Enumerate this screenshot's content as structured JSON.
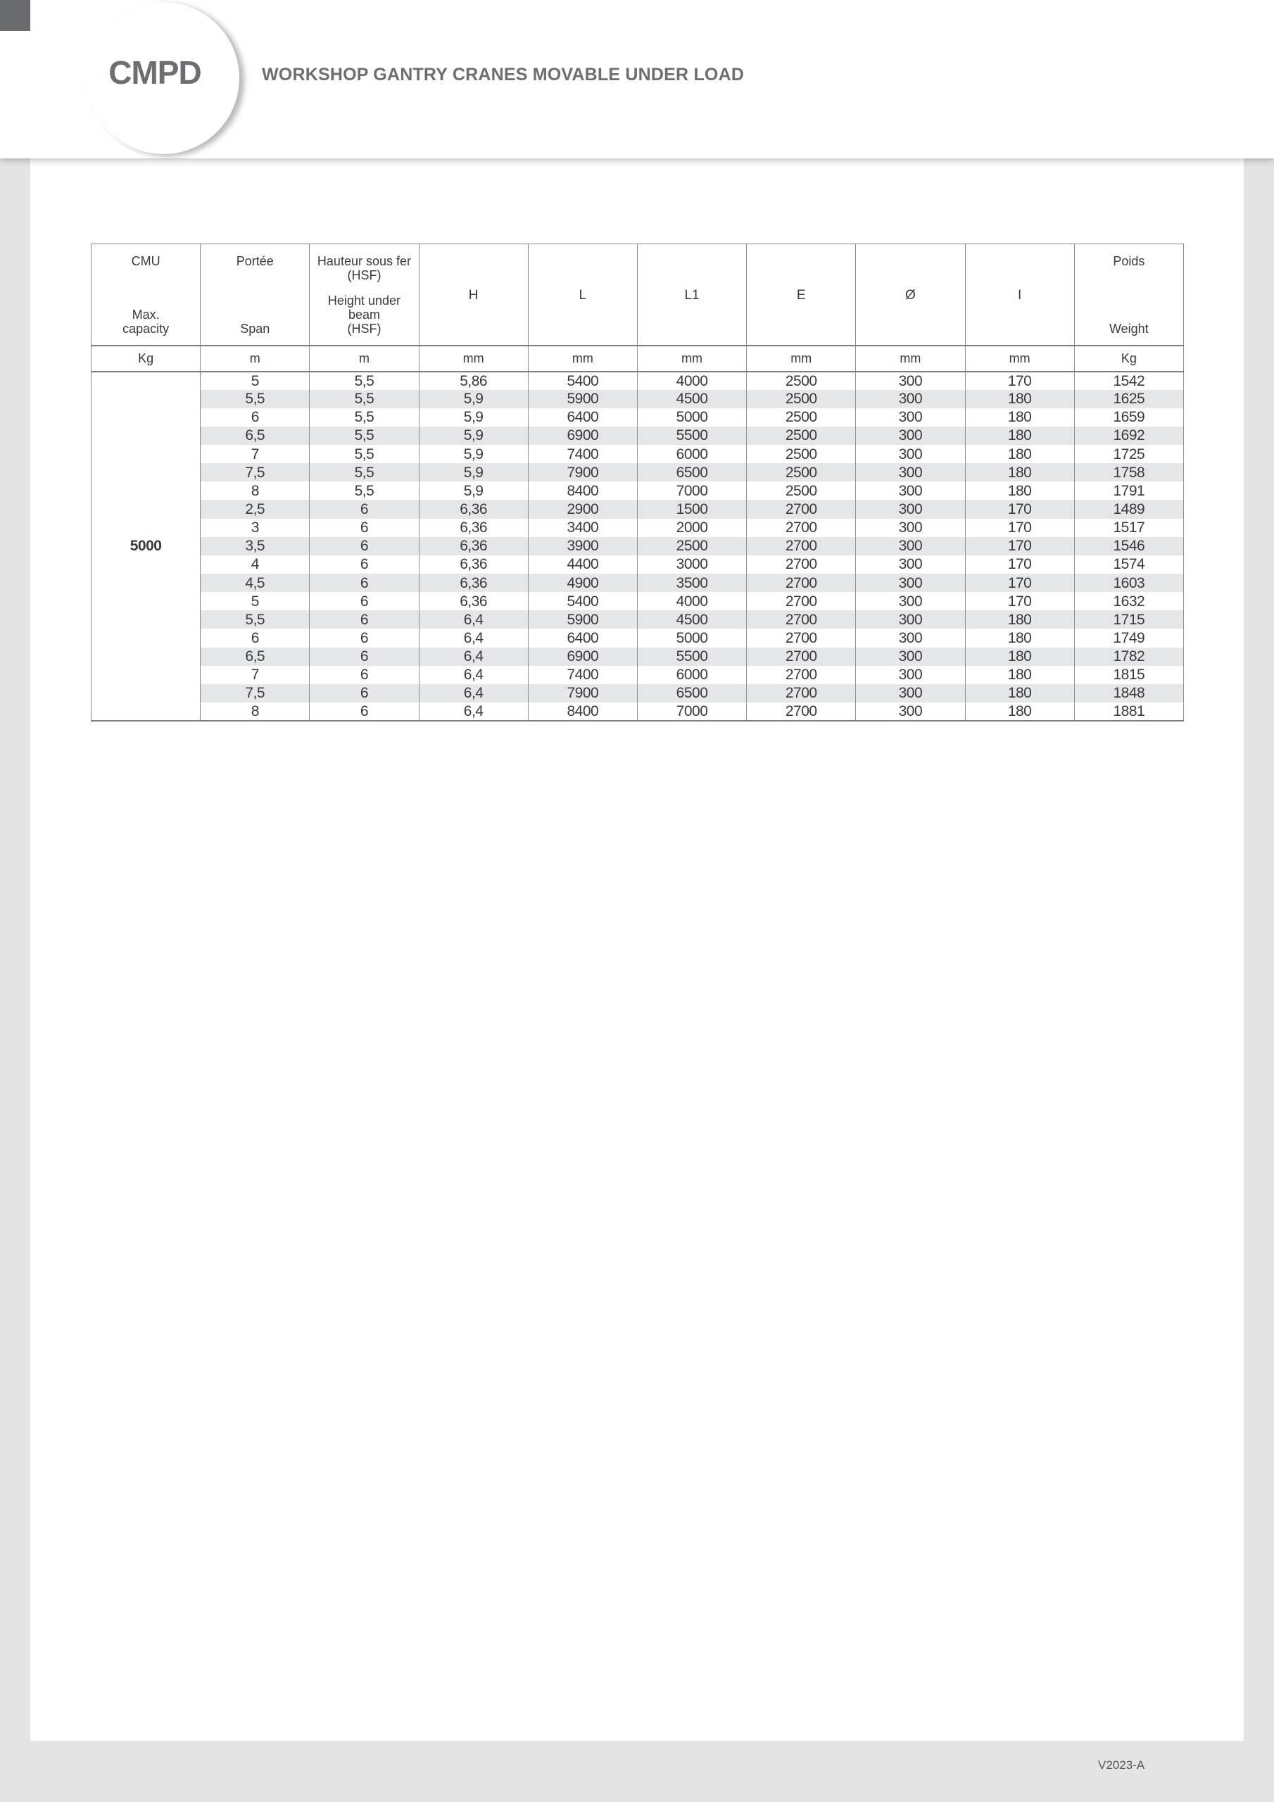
{
  "page": {
    "brand": "CMPD",
    "title": "WORKSHOP GANTRY CRANES MOVABLE UNDER LOAD",
    "version": "V2023-A"
  },
  "colors": {
    "page_background": "#e4e4e5",
    "corner_square": "#6a6b6d",
    "brand_text": "#6d6e71",
    "table_text": "#3a3a3c",
    "row_shading": "#e5e6e7",
    "table_border": "#88898b"
  },
  "table": {
    "columns": [
      {
        "key": "cmu",
        "fr": "CMU",
        "en": "Max.\ncapacity",
        "unit": "Kg"
      },
      {
        "key": "span",
        "fr": "Portée",
        "en": "Span",
        "unit": "m"
      },
      {
        "key": "hsf",
        "fr": "Hauteur sous fer\n(HSF)",
        "en": "Height under beam\n(HSF)",
        "unit": "m"
      },
      {
        "key": "h",
        "letter": "H",
        "unit": "mm"
      },
      {
        "key": "l",
        "letter": "L",
        "unit": "mm"
      },
      {
        "key": "l1",
        "letter": "L1",
        "unit": "mm"
      },
      {
        "key": "e",
        "letter": "E",
        "unit": "mm"
      },
      {
        "key": "diameter",
        "letter": "Ø",
        "unit": "mm"
      },
      {
        "key": "i",
        "letter": "I",
        "unit": "mm"
      },
      {
        "key": "weight",
        "fr": "Poids",
        "en": "Weight",
        "unit": "Kg"
      }
    ],
    "capacity": "5000",
    "rows": [
      [
        "5",
        "5,5",
        "5,86",
        "5400",
        "4000",
        "2500",
        "300",
        "170",
        "1542"
      ],
      [
        "5,5",
        "5,5",
        "5,9",
        "5900",
        "4500",
        "2500",
        "300",
        "180",
        "1625"
      ],
      [
        "6",
        "5,5",
        "5,9",
        "6400",
        "5000",
        "2500",
        "300",
        "180",
        "1659"
      ],
      [
        "6,5",
        "5,5",
        "5,9",
        "6900",
        "5500",
        "2500",
        "300",
        "180",
        "1692"
      ],
      [
        "7",
        "5,5",
        "5,9",
        "7400",
        "6000",
        "2500",
        "300",
        "180",
        "1725"
      ],
      [
        "7,5",
        "5,5",
        "5,9",
        "7900",
        "6500",
        "2500",
        "300",
        "180",
        "1758"
      ],
      [
        "8",
        "5,5",
        "5,9",
        "8400",
        "7000",
        "2500",
        "300",
        "180",
        "1791"
      ],
      [
        "2,5",
        "6",
        "6,36",
        "2900",
        "1500",
        "2700",
        "300",
        "170",
        "1489"
      ],
      [
        "3",
        "6",
        "6,36",
        "3400",
        "2000",
        "2700",
        "300",
        "170",
        "1517"
      ],
      [
        "3,5",
        "6",
        "6,36",
        "3900",
        "2500",
        "2700",
        "300",
        "170",
        "1546"
      ],
      [
        "4",
        "6",
        "6,36",
        "4400",
        "3000",
        "2700",
        "300",
        "170",
        "1574"
      ],
      [
        "4,5",
        "6",
        "6,36",
        "4900",
        "3500",
        "2700",
        "300",
        "170",
        "1603"
      ],
      [
        "5",
        "6",
        "6,36",
        "5400",
        "4000",
        "2700",
        "300",
        "170",
        "1632"
      ],
      [
        "5,5",
        "6",
        "6,4",
        "5900",
        "4500",
        "2700",
        "300",
        "180",
        "1715"
      ],
      [
        "6",
        "6",
        "6,4",
        "6400",
        "5000",
        "2700",
        "300",
        "180",
        "1749"
      ],
      [
        "6,5",
        "6",
        "6,4",
        "6900",
        "5500",
        "2700",
        "300",
        "180",
        "1782"
      ],
      [
        "7",
        "6",
        "6,4",
        "7400",
        "6000",
        "2700",
        "300",
        "180",
        "1815"
      ],
      [
        "7,5",
        "6",
        "6,4",
        "7900",
        "6500",
        "2700",
        "300",
        "180",
        "1848"
      ],
      [
        "8",
        "6",
        "6,4",
        "8400",
        "7000",
        "2700",
        "300",
        "180",
        "1881"
      ]
    ]
  }
}
